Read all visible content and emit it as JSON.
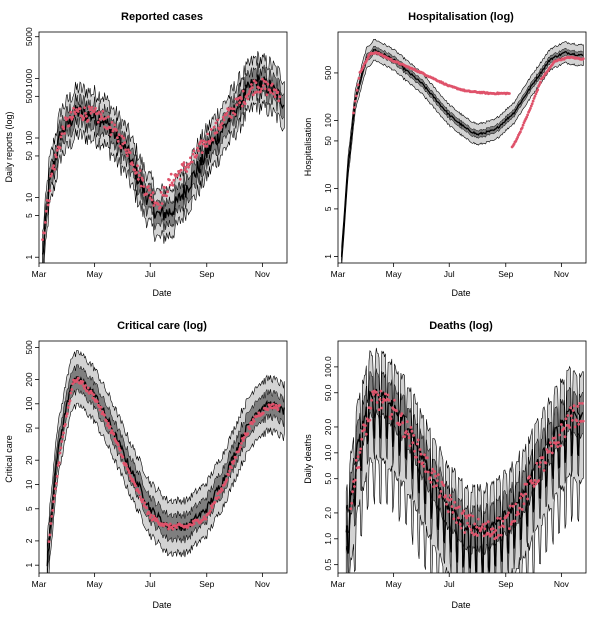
{
  "colors": {
    "band_outer": "#d3d3d3",
    "band_inner": "#7f7f7f",
    "line": "#000000",
    "observed": "#df536b"
  },
  "chart_data": [
    {
      "type": "line",
      "title": "Reported cases",
      "xlabel": "Date",
      "ylabel": "Daily reports (log)",
      "log_y": true,
      "xlim": [
        "2020-03-01",
        "2020-11-28"
      ],
      "ylim": [
        0.8,
        6000
      ],
      "x_ticks": [
        "Mar",
        "May",
        "Jul",
        "Sep",
        "Nov"
      ],
      "y_ticks": [
        1,
        5,
        10,
        50,
        100,
        500,
        1000,
        5000
      ],
      "median_keypoints": {
        "x": [
          "2020-03-05",
          "2020-03-12",
          "2020-03-25",
          "2020-04-12",
          "2020-05-10",
          "2020-06-05",
          "2020-06-25",
          "2020-07-10",
          "2020-07-25",
          "2020-08-15",
          "2020-09-05",
          "2020-09-25",
          "2020-10-15",
          "2020-10-25",
          "2020-11-10",
          "2020-11-25"
        ],
        "y": [
          1,
          15,
          120,
          280,
          210,
          60,
          12,
          5,
          6,
          20,
          70,
          200,
          600,
          900,
          700,
          400
        ]
      },
      "observed_keypoints": {
        "x": [
          "2020-03-05",
          "2020-03-15",
          "2020-03-28",
          "2020-04-12",
          "2020-05-10",
          "2020-06-05",
          "2020-06-25",
          "2020-07-10",
          "2020-07-25",
          "2020-08-15",
          "2020-09-05",
          "2020-09-25",
          "2020-10-15",
          "2020-10-25",
          "2020-11-10",
          "2020-11-20"
        ],
        "y": [
          2,
          25,
          150,
          280,
          220,
          70,
          15,
          8,
          20,
          40,
          110,
          250,
          550,
          800,
          650,
          550
        ]
      }
    },
    {
      "type": "line",
      "title": "Hospitalisation (log)",
      "xlabel": "Date",
      "ylabel": "Hospitalisation",
      "log_y": true,
      "xlim": [
        "2020-03-01",
        "2020-11-28"
      ],
      "ylim": [
        0.8,
        2000
      ],
      "x_ticks": [
        "Mar",
        "May",
        "Jul",
        "Sep",
        "Nov"
      ],
      "y_ticks": [
        1,
        5,
        10,
        50,
        100,
        500
      ],
      "median_keypoints": {
        "x": [
          "2020-03-05",
          "2020-03-12",
          "2020-03-20",
          "2020-04-01",
          "2020-04-10",
          "2020-04-30",
          "2020-06-01",
          "2020-07-01",
          "2020-07-20",
          "2020-08-01",
          "2020-08-20",
          "2020-09-10",
          "2020-10-01",
          "2020-10-20",
          "2020-11-05",
          "2020-11-25"
        ],
        "y": [
          1,
          20,
          200,
          800,
          1100,
          800,
          350,
          120,
          75,
          62,
          72,
          130,
          350,
          800,
          1000,
          900
        ]
      },
      "observed_keypoints": {
        "x": [
          "2020-03-18",
          "2020-03-25",
          "2020-04-05",
          "2020-04-12",
          "2020-05-01",
          "2020-06-01",
          "2020-07-01",
          "2020-07-20",
          "2020-08-15",
          "2020-09-05"
        ],
        "y": [
          130,
          500,
          950,
          1000,
          750,
          500,
          320,
          270,
          250,
          250
        ]
      },
      "observed_keypoints_b": {
        "x": [
          "2020-09-08",
          "2020-09-15",
          "2020-09-28",
          "2020-10-10",
          "2020-10-25",
          "2020-11-10",
          "2020-11-25"
        ],
        "y": [
          40,
          60,
          150,
          400,
          750,
          850,
          800
        ]
      }
    },
    {
      "type": "line",
      "title": "Critical care (log)",
      "xlabel": "Date",
      "ylabel": "Critical care",
      "log_y": true,
      "xlim": [
        "2020-03-01",
        "2020-11-28"
      ],
      "ylim": [
        0.8,
        600
      ],
      "x_ticks": [
        "Mar",
        "May",
        "Jul",
        "Sep",
        "Nov"
      ],
      "y_ticks": [
        1,
        2,
        5,
        10,
        20,
        50,
        100,
        200,
        500
      ],
      "median_keypoints": {
        "x": [
          "2020-03-10",
          "2020-03-20",
          "2020-04-05",
          "2020-04-15",
          "2020-05-01",
          "2020-05-20",
          "2020-06-10",
          "2020-07-01",
          "2020-07-20",
          "2020-08-10",
          "2020-09-01",
          "2020-09-20",
          "2020-10-10",
          "2020-10-25",
          "2020-11-10",
          "2020-11-25"
        ],
        "y": [
          1,
          20,
          180,
          200,
          130,
          50,
          15,
          5,
          3,
          3,
          5,
          12,
          40,
          80,
          100,
          80
        ]
      },
      "observed_keypoints": {
        "x": [
          "2020-03-12",
          "2020-03-25",
          "2020-04-08",
          "2020-04-15",
          "2020-05-01",
          "2020-05-20",
          "2020-06-10",
          "2020-07-01",
          "2020-07-20",
          "2020-08-10",
          "2020-09-01",
          "2020-09-20",
          "2020-10-10",
          "2020-10-25",
          "2020-11-10",
          "2020-11-20"
        ],
        "y": [
          2,
          30,
          200,
          190,
          120,
          45,
          12,
          4,
          3,
          3,
          4,
          10,
          35,
          70,
          95,
          90
        ]
      }
    },
    {
      "type": "line",
      "title": "Deaths (log)",
      "xlabel": "Date",
      "ylabel": "Daily deaths",
      "log_y": true,
      "xlim": [
        "2020-03-01",
        "2020-11-28"
      ],
      "ylim": [
        0.4,
        200
      ],
      "x_ticks": [
        "Mar",
        "May",
        "Jul",
        "Sep",
        "Nov"
      ],
      "y_ticks": [
        0.5,
        1.0,
        2.0,
        5.0,
        10.0,
        20.0,
        50.0,
        100.0
      ],
      "y_tick_labels": [
        "0.5",
        "1.0",
        "2.0",
        "5.0",
        "10.0",
        "20.0",
        "50.0",
        "100.0"
      ],
      "median_keypoints": {
        "x": [
          "2020-03-10",
          "2020-03-22",
          "2020-04-05",
          "2020-04-15",
          "2020-05-01",
          "2020-05-20",
          "2020-06-10",
          "2020-07-01",
          "2020-07-20",
          "2020-08-10",
          "2020-09-01",
          "2020-09-20",
          "2020-10-10",
          "2020-10-25",
          "2020-11-10",
          "2020-11-25"
        ],
        "y": [
          1,
          10,
          40,
          42,
          32,
          15,
          5,
          2,
          1.1,
          1.1,
          1.6,
          3,
          8,
          15,
          25,
          25
        ]
      },
      "observed_keypoints": {
        "x": [
          "2020-03-15",
          "2020-03-28",
          "2020-04-10",
          "2020-05-01",
          "2020-05-20",
          "2020-06-10",
          "2020-07-01",
          "2020-07-20",
          "2020-08-10",
          "2020-09-01",
          "2020-09-20",
          "2020-10-10",
          "2020-10-25",
          "2020-11-10",
          "2020-11-25"
        ],
        "y": [
          3,
          15,
          45,
          32,
          15,
          6,
          2.5,
          1.5,
          1.2,
          1.5,
          3,
          7,
          12,
          25,
          30
        ]
      }
    }
  ]
}
